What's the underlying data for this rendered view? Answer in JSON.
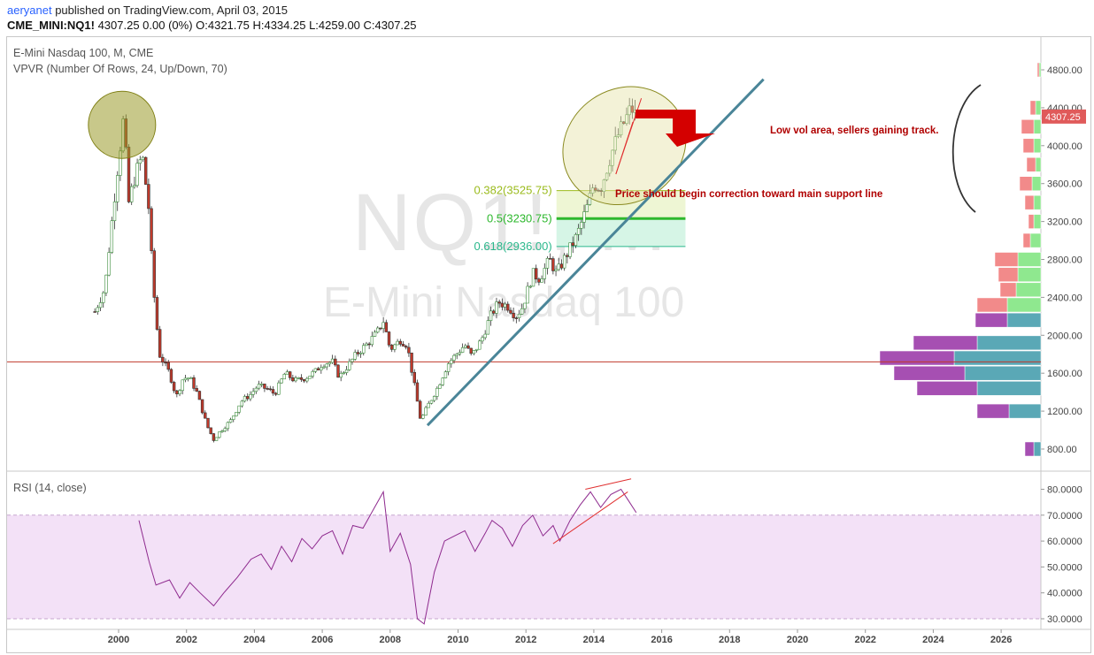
{
  "header": {
    "user": "aeryanet",
    "published": " published on TradingView.com, April 03, 2015",
    "symbol": "CME_MINI:NQ1!",
    "quote": " 4307.25  0.00 (0%)  O:4321.75  H:4334.25  L:4259.00  C:4307.25"
  },
  "legend": {
    "main": "E-Mini Nasdaq 100, M, CME",
    "vpvr": "VPVR (Number Of Rows, 24, Up/Down, 70)",
    "rsi": "RSI (14, close)"
  },
  "watermark": {
    "symbol": "NQ1!, M",
    "name": "E-Mini Nasdaq 100"
  },
  "annotations": {
    "low_vol": "Low vol area, sellers gaining track.",
    "correction": "Price should begin correction toward main support line"
  },
  "colors": {
    "up": "#3c8c3c",
    "down": "#c0392b",
    "trendline": "#4a8598",
    "rsi_line": "#8e2a8e",
    "rsi_band": "#f3e1f7",
    "fib382": "#9bbb1d",
    "fib50": "#2db82d",
    "fib618": "#2bb88c",
    "annotation": "#b00000"
  },
  "chart_data": [
    {
      "type": "candlestick",
      "title": "E-Mini Nasdaq 100, M, CME",
      "x_ticks": [
        "2000",
        "2002",
        "2004",
        "2006",
        "2008",
        "2010",
        "2012",
        "2014",
        "2016",
        "2018",
        "2020",
        "2022",
        "2024",
        "2026"
      ],
      "y_ticks": [
        "800.00",
        "1200.00",
        "1600.00",
        "2000.00",
        "2400.00",
        "2800.00",
        "3200.00",
        "3600.00",
        "4000.00",
        "4400.00",
        "4800.00"
      ],
      "ylim": [
        700,
        5000
      ],
      "xlim": [
        1998.5,
        2027.3
      ],
      "last_price": "4307.25",
      "price_path": [
        [
          1999.3,
          2250
        ],
        [
          1999.6,
          2500
        ],
        [
          1999.8,
          3200
        ],
        [
          1999.95,
          3700
        ],
        [
          2000.15,
          4300
        ],
        [
          2000.3,
          3400
        ],
        [
          2000.5,
          3700
        ],
        [
          2000.7,
          3900
        ],
        [
          2000.9,
          3300
        ],
        [
          2001.0,
          2600
        ],
        [
          2001.2,
          1800
        ],
        [
          2001.5,
          1600
        ],
        [
          2001.7,
          1350
        ],
        [
          2001.9,
          1550
        ],
        [
          2002.1,
          1550
        ],
        [
          2002.3,
          1400
        ],
        [
          2002.6,
          1050
        ],
        [
          2002.8,
          900
        ],
        [
          2003.0,
          990
        ],
        [
          2003.3,
          1100
        ],
        [
          2003.6,
          1300
        ],
        [
          2003.9,
          1380
        ],
        [
          2004.1,
          1470
        ],
        [
          2004.4,
          1430
        ],
        [
          2004.6,
          1380
        ],
        [
          2004.9,
          1600
        ],
        [
          2005.2,
          1520
        ],
        [
          2005.5,
          1550
        ],
        [
          2005.8,
          1620
        ],
        [
          2006.0,
          1700
        ],
        [
          2006.3,
          1720
        ],
        [
          2006.5,
          1560
        ],
        [
          2006.8,
          1700
        ],
        [
          2007.0,
          1800
        ],
        [
          2007.3,
          1900
        ],
        [
          2007.6,
          2020
        ],
        [
          2007.8,
          2150
        ],
        [
          2008.0,
          1850
        ],
        [
          2008.3,
          1950
        ],
        [
          2008.5,
          1900
        ],
        [
          2008.75,
          1400
        ],
        [
          2008.9,
          1100
        ],
        [
          2009.1,
          1250
        ],
        [
          2009.4,
          1450
        ],
        [
          2009.7,
          1700
        ],
        [
          2009.95,
          1800
        ],
        [
          2010.2,
          1900
        ],
        [
          2010.4,
          1780
        ],
        [
          2010.7,
          1960
        ],
        [
          2010.95,
          2200
        ],
        [
          2011.2,
          2350
        ],
        [
          2011.5,
          2300
        ],
        [
          2011.7,
          2200
        ],
        [
          2011.9,
          2300
        ],
        [
          2012.2,
          2650
        ],
        [
          2012.4,
          2600
        ],
        [
          2012.7,
          2800
        ],
        [
          2012.9,
          2650
        ],
        [
          2013.2,
          2850
        ],
        [
          2013.5,
          3050
        ],
        [
          2013.8,
          3350
        ],
        [
          2014.0,
          3600
        ],
        [
          2014.2,
          3550
        ],
        [
          2014.5,
          3900
        ],
        [
          2014.7,
          4100
        ],
        [
          2014.9,
          4250
        ],
        [
          2015.1,
          4400
        ],
        [
          2015.25,
          4307
        ]
      ],
      "fibonacci": [
        {
          "label": "0.382(3525.75)",
          "value": 3525.75
        },
        {
          "label": "0.5(3230.75)",
          "value": 3230.75
        },
        {
          "label": "0.618(2936.00)",
          "value": 2936.0
        }
      ],
      "horizontal_line": 1720,
      "trendline": [
        [
          2009.1,
          1050
        ],
        [
          2019.0,
          4700
        ]
      ],
      "volume_profile": [
        {
          "price": 800,
          "up": 8,
          "down": 10
        },
        {
          "price": 1200,
          "up": 36,
          "down": 36
        },
        {
          "price": 1440,
          "up": 72,
          "down": 68
        },
        {
          "price": 1600,
          "up": 86,
          "down": 80
        },
        {
          "price": 1760,
          "up": 98,
          "down": 84
        },
        {
          "price": 1920,
          "up": 72,
          "down": 72
        },
        {
          "price": 2160,
          "up": 38,
          "down": 36
        },
        {
          "price": 2320,
          "up": 38,
          "down": 34
        },
        {
          "price": 2480,
          "up": 28,
          "down": 18
        },
        {
          "price": 2640,
          "up": 26,
          "down": 22
        },
        {
          "price": 2800,
          "up": 26,
          "down": 26
        },
        {
          "price": 3000,
          "up": 12,
          "down": 8
        },
        {
          "price": 3200,
          "up": 8,
          "down": 6
        },
        {
          "price": 3400,
          "up": 8,
          "down": 10
        },
        {
          "price": 3600,
          "up": 10,
          "down": 14
        },
        {
          "price": 3800,
          "up": 6,
          "down": 10
        },
        {
          "price": 4000,
          "up": 8,
          "down": 12
        },
        {
          "price": 4200,
          "up": 8,
          "down": 14
        },
        {
          "price": 4400,
          "up": 6,
          "down": 6
        },
        {
          "price": 4800,
          "up": 2,
          "down": 2
        }
      ]
    },
    {
      "type": "line",
      "title": "RSI (14, close)",
      "y_ticks": [
        "30.0000",
        "40.0000",
        "50.0000",
        "60.0000",
        "70.0000",
        "80.0000"
      ],
      "ylim": [
        27,
        85
      ],
      "band": [
        30,
        70
      ],
      "series": [
        {
          "values": [
            [
              2000.6,
              68
            ],
            [
              2000.9,
              52
            ],
            [
              2001.1,
              43
            ],
            [
              2001.5,
              45
            ],
            [
              2001.8,
              38
            ],
            [
              2002.1,
              44
            ],
            [
              2002.4,
              40
            ],
            [
              2002.8,
              35
            ],
            [
              2003.1,
              40
            ],
            [
              2003.5,
              46
            ],
            [
              2003.9,
              53
            ],
            [
              2004.2,
              55
            ],
            [
              2004.5,
              49
            ],
            [
              2004.8,
              58
            ],
            [
              2005.1,
              52
            ],
            [
              2005.4,
              61
            ],
            [
              2005.7,
              57
            ],
            [
              2006.0,
              62
            ],
            [
              2006.3,
              64
            ],
            [
              2006.6,
              55
            ],
            [
              2006.9,
              66
            ],
            [
              2007.2,
              65
            ],
            [
              2007.5,
              72
            ],
            [
              2007.8,
              79
            ],
            [
              2008.0,
              56
            ],
            [
              2008.3,
              63
            ],
            [
              2008.6,
              51
            ],
            [
              2008.8,
              30
            ],
            [
              2009.0,
              28
            ],
            [
              2009.3,
              48
            ],
            [
              2009.6,
              60
            ],
            [
              2009.9,
              62
            ],
            [
              2010.2,
              64
            ],
            [
              2010.5,
              56
            ],
            [
              2010.8,
              63
            ],
            [
              2011.0,
              68
            ],
            [
              2011.3,
              65
            ],
            [
              2011.6,
              58
            ],
            [
              2011.9,
              66
            ],
            [
              2012.2,
              70
            ],
            [
              2012.5,
              62
            ],
            [
              2012.8,
              66
            ],
            [
              2013.0,
              60
            ],
            [
              2013.3,
              68
            ],
            [
              2013.6,
              74
            ],
            [
              2013.9,
              79
            ],
            [
              2014.2,
              73
            ],
            [
              2014.5,
              78
            ],
            [
              2014.8,
              80
            ],
            [
              2015.0,
              76
            ],
            [
              2015.25,
              71
            ]
          ]
        }
      ]
    }
  ]
}
